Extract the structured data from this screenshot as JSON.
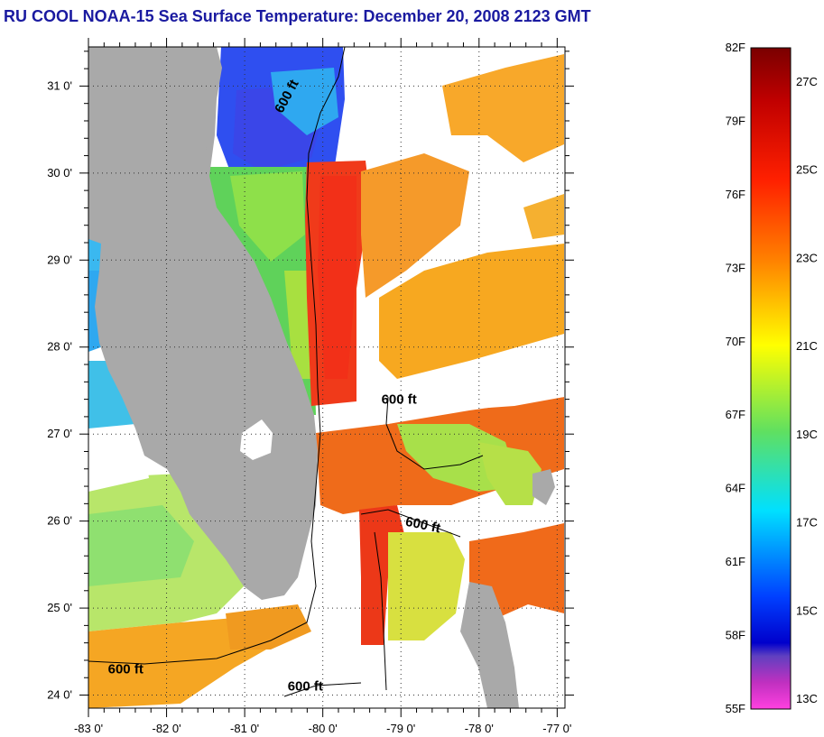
{
  "title": "RU COOL  NOAA-15  Sea Surface Temperature:  December 20, 2008 2123 GMT",
  "map": {
    "lon_range": [
      -83,
      -76.9
    ],
    "lat_range": [
      23.85,
      31.45
    ],
    "lat_ticks": [
      {
        "value": 31,
        "label": "31 0'"
      },
      {
        "value": 30,
        "label": "30 0'"
      },
      {
        "value": 29,
        "label": "29 0'"
      },
      {
        "value": 28,
        "label": "28 0'"
      },
      {
        "value": 27,
        "label": "27 0'"
      },
      {
        "value": 26,
        "label": "26 0'"
      },
      {
        "value": 25,
        "label": "25 0'"
      },
      {
        "value": 24,
        "label": "24 0'"
      }
    ],
    "lon_ticks": [
      {
        "value": -83,
        "label": "-83 0'"
      },
      {
        "value": -82,
        "label": "-82 0'"
      },
      {
        "value": -81,
        "label": "-81 0'"
      },
      {
        "value": -80,
        "label": "-80 0'"
      },
      {
        "value": -79,
        "label": "-79 0'"
      },
      {
        "value": -78,
        "label": "-78 0'"
      },
      {
        "value": -77,
        "label": "-77 0'"
      }
    ],
    "grid": "dotted",
    "land_color": "#a9a9a9",
    "no_data_color": "#ffffff",
    "contours": [
      {
        "label": "600 ft",
        "lon": -80.52,
        "lat": 30.68
      },
      {
        "label": "600 ft",
        "lon": -79.25,
        "lat": 27.35
      },
      {
        "label": "600 ft",
        "lon": -78.95,
        "lat": 25.95
      },
      {
        "label": "600 ft",
        "lon": -82.75,
        "lat": 24.25
      },
      {
        "label": "600 ft",
        "lon": -80.45,
        "lat": 24.05
      }
    ]
  },
  "colorbar": {
    "fahrenheit_labels": [
      "82F",
      "79F",
      "76F",
      "73F",
      "70F",
      "67F",
      "64F",
      "61F",
      "58F",
      "55F"
    ],
    "celsius_labels": [
      "27C",
      "25C",
      "23C",
      "21C",
      "19C",
      "17C",
      "15C",
      "13C"
    ],
    "range_f": [
      55,
      82
    ]
  }
}
